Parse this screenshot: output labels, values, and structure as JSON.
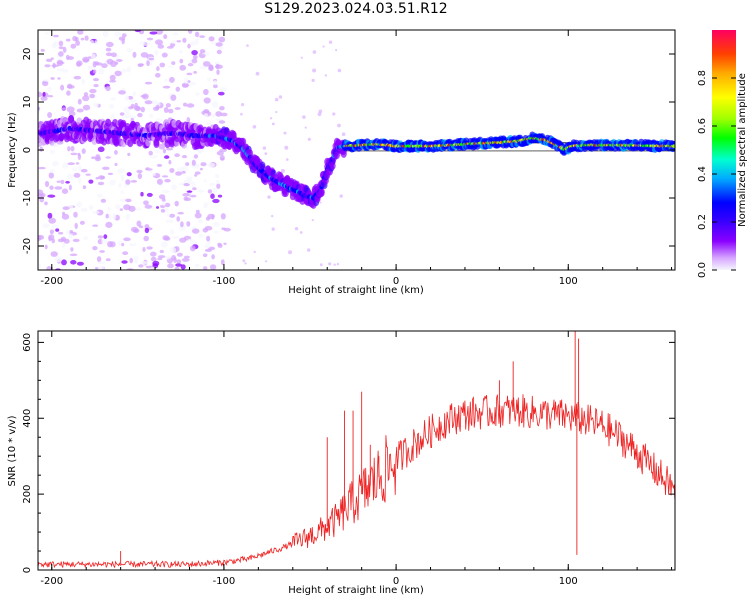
{
  "figure": {
    "title": "S129.2023.024.03.51.R12"
  },
  "chart_data": [
    {
      "type": "heatmap",
      "xlabel": "Height of straight line (km)",
      "ylabel": "Frequency (Hz)",
      "xlim": [
        -208,
        162
      ],
      "ylim": [
        -25,
        25
      ],
      "x_ticks": [
        -200,
        -100,
        0,
        100
      ],
      "y_ticks": [
        -20,
        -10,
        0,
        10,
        20
      ],
      "colorbar": {
        "label": "Normalized spectral amplitude",
        "range": [
          0.0,
          1.0
        ],
        "ticks": [
          "0.0",
          "0.2",
          "0.4",
          "0.6",
          "0.8"
        ],
        "colors": [
          "#f6f6ff",
          "#d6a6ff",
          "#8a00ff",
          "#3a00ff",
          "#0000ff",
          "#00aaff",
          "#00ffd0",
          "#00ff00",
          "#a0ff00",
          "#ffff00",
          "#ffaa00",
          "#ff4000",
          "#ff0060"
        ]
      },
      "ridge": {
        "x": [
          -206,
          -190,
          -175,
          -160,
          -145,
          -130,
          -118,
          -105,
          -95,
          -88,
          -82,
          -76,
          -70,
          -64,
          -58,
          -53,
          -48,
          -44,
          -40,
          -37,
          -34,
          -30,
          -20,
          -10,
          0,
          20,
          40,
          55,
          70,
          80,
          88,
          95,
          98,
          102,
          110,
          130,
          160
        ],
        "y": [
          3.5,
          4.5,
          4.0,
          3.5,
          3.0,
          3.5,
          3.0,
          3.0,
          2.0,
          0.0,
          -3.0,
          -5.0,
          -6.5,
          -7.5,
          -8.5,
          -9.5,
          -10.0,
          -8.5,
          -4.0,
          -2.0,
          0.5,
          0.8,
          1.0,
          1.2,
          0.8,
          0.8,
          1.2,
          1.5,
          1.8,
          2.5,
          2.0,
          0.8,
          0.0,
          0.8,
          1.0,
          1.0,
          0.8
        ]
      }
    },
    {
      "type": "line",
      "xlabel": "Height of straight line (km)",
      "ylabel": "SNR (10 * v/v)",
      "xlim": [
        -208,
        162
      ],
      "ylim": [
        0,
        630
      ],
      "x_ticks": [
        -200,
        -100,
        0,
        100
      ],
      "y_ticks": [
        0,
        200,
        400,
        600
      ],
      "series": [
        {
          "color": "#ee2222",
          "envelope_x": [
            -208,
            -180,
            -150,
            -120,
            -100,
            -85,
            -75,
            -65,
            -55,
            -45,
            -35,
            -28,
            -20,
            -10,
            0,
            10,
            20,
            30,
            40,
            50,
            60,
            70,
            80,
            90,
            100,
            110,
            120,
            130,
            140,
            150,
            162
          ],
          "envelope_y": [
            15,
            15,
            15,
            15,
            20,
            30,
            45,
            60,
            80,
            100,
            130,
            165,
            200,
            245,
            290,
            330,
            365,
            395,
            410,
            415,
            420,
            420,
            415,
            410,
            405,
            395,
            380,
            350,
            310,
            265,
            210
          ],
          "spikes_x": [
            -160,
            -40,
            -30,
            -25,
            -20,
            -15,
            -10,
            60,
            68,
            104,
            105,
            106
          ],
          "spikes_y": [
            50,
            350,
            420,
            420,
            470,
            330,
            300,
            500,
            550,
            630,
            40,
            610
          ]
        }
      ]
    }
  ]
}
